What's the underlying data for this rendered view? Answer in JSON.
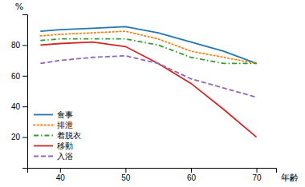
{
  "chart_data": {
    "type": "line",
    "x_label": "年齢",
    "y_label": "%",
    "x": [
      37,
      40,
      45,
      50,
      55,
      60,
      65,
      70
    ],
    "xlim": [
      35,
      73
    ],
    "ylim": [
      0,
      100
    ],
    "xticks": [
      40,
      50,
      60,
      70
    ],
    "yticks": [
      20,
      40,
      60,
      80
    ],
    "grid": false,
    "legend": "lower left",
    "series": [
      {
        "name": "食事",
        "values": [
          89,
          90,
          91,
          92,
          88,
          82,
          76,
          68
        ],
        "line_style": "solid"
      },
      {
        "name": "排泄",
        "values": [
          86,
          87,
          88,
          89,
          84,
          76,
          72,
          68
        ],
        "line_style": "dotted"
      },
      {
        "name": "着脱衣",
        "values": [
          83,
          84,
          84,
          84,
          80,
          72,
          68,
          68
        ],
        "line_style": "dashdot"
      },
      {
        "name": "移動",
        "values": [
          80,
          81,
          82,
          79,
          68,
          55,
          38,
          20
        ],
        "line_style": "solid"
      },
      {
        "name": "入浴",
        "values": [
          68,
          70,
          72,
          73,
          68,
          58,
          52,
          46
        ],
        "line_style": "dashed"
      }
    ]
  }
}
